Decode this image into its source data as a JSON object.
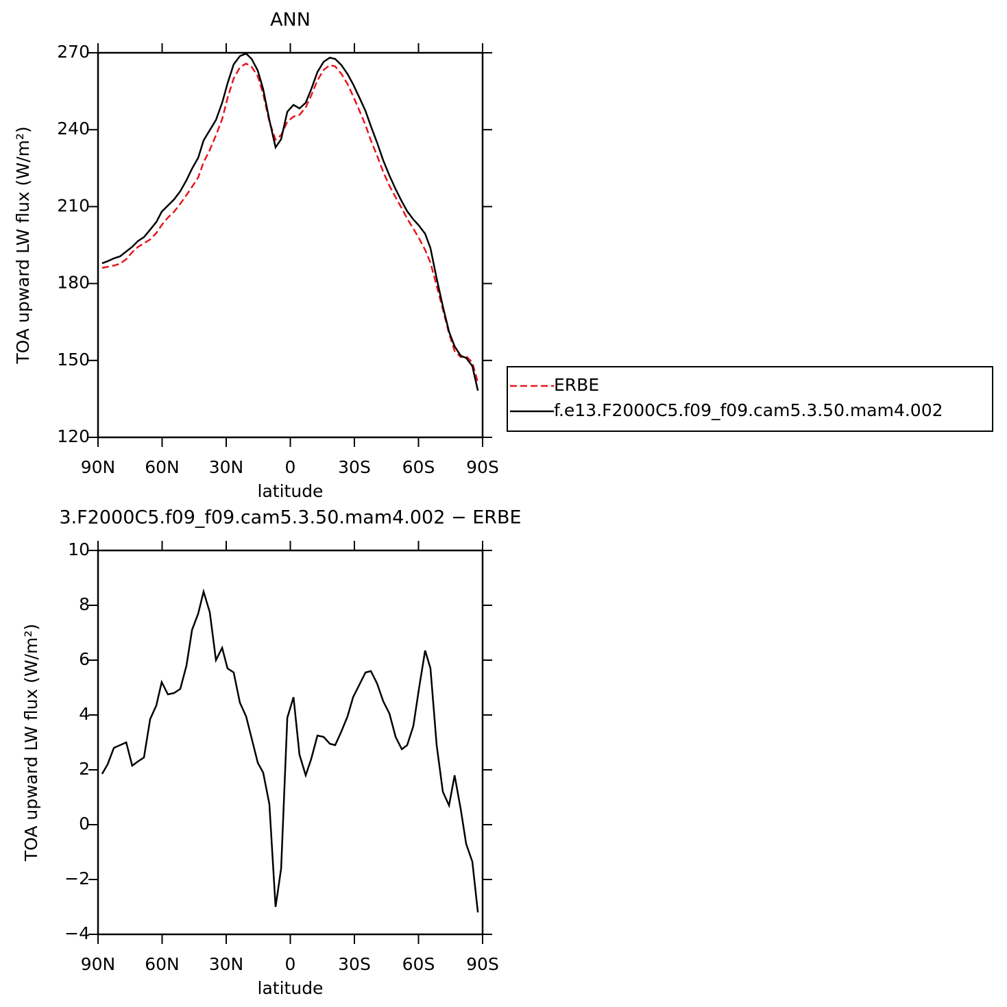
{
  "chart_data": [
    {
      "type": "line",
      "title": "ANN",
      "xlabel": "latitude",
      "ylabel": "TOA upward LW flux (W/m²)",
      "x": [
        88.1,
        85.5,
        82.6,
        79.7,
        76.8,
        74.0,
        71.4,
        68.5,
        65.6,
        62.7,
        60.2,
        57.3,
        54.4,
        51.5,
        48.6,
        46.0,
        43.1,
        40.6,
        37.7,
        34.8,
        31.9,
        29.4,
        26.5,
        23.6,
        20.7,
        18.1,
        15.2,
        12.7,
        9.8,
        6.9,
        4.3,
        1.4,
        -1.5,
        -4.3,
        -7.2,
        -9.8,
        -12.7,
        -15.6,
        -18.5,
        -21.0,
        -23.9,
        -26.8,
        -29.4,
        -32.3,
        -35.2,
        -37.7,
        -40.6,
        -43.5,
        -46.4,
        -49.3,
        -52.2,
        -54.7,
        -57.6,
        -60.2,
        -63.1,
        -65.6,
        -68.5,
        -71.4,
        -74.3,
        -76.9,
        -79.8,
        -82.3,
        -85.2,
        -87.8
      ],
      "series": [
        {
          "name": "ERBE",
          "color": "#e8141b",
          "style": "dashed",
          "values": [
            186.1,
            186.5,
            187.0,
            187.7,
            189.5,
            192.2,
            194.2,
            195.7,
            197.2,
            199.7,
            202.8,
            205.7,
            208.0,
            211.1,
            214.5,
            217.7,
            221.4,
            227.3,
            232.1,
            237.8,
            244.1,
            252.3,
            260.0,
            264.3,
            265.8,
            264.5,
            260.8,
            253.9,
            243.1,
            236.1,
            237.9,
            243.1,
            245.1,
            245.8,
            248.7,
            253.4,
            259.3,
            263.3,
            265.2,
            264.7,
            261.8,
            257.8,
            253.1,
            247.5,
            241.8,
            235.8,
            229.9,
            223.5,
            218.1,
            213.6,
            209.3,
            205.3,
            201.4,
            197.7,
            193.1,
            188.1,
            179.1,
            169.9,
            160.5,
            153.7,
            151.3,
            151.7,
            149.2,
            141.4
          ]
        },
        {
          "name": "f.e13.F2000C5.f09_f09.cam5.3.50.mam4.002",
          "color": "#000000",
          "style": "solid",
          "values": [
            187.9,
            188.7,
            189.8,
            190.6,
            192.5,
            194.3,
            196.5,
            198.1,
            201.0,
            204.0,
            208.0,
            210.4,
            212.8,
            216.0,
            220.3,
            224.8,
            229.1,
            235.8,
            239.8,
            243.8,
            250.5,
            258.0,
            265.5,
            268.7,
            269.7,
            267.6,
            263.0,
            255.8,
            243.8,
            233.1,
            236.3,
            247.0,
            249.7,
            248.3,
            250.5,
            255.8,
            262.5,
            266.5,
            268.1,
            267.6,
            265.2,
            261.7,
            257.7,
            252.6,
            247.3,
            241.4,
            235.0,
            228.0,
            222.1,
            216.8,
            212.0,
            208.2,
            205.0,
            202.6,
            199.4,
            193.8,
            182.0,
            171.1,
            161.2,
            155.5,
            151.8,
            151.0,
            147.8,
            138.2
          ]
        }
      ],
      "xlim": [
        90,
        -90
      ],
      "xticks": [
        {
          "value": 90,
          "label": "90N"
        },
        {
          "value": 60,
          "label": "60N"
        },
        {
          "value": 30,
          "label": "30N"
        },
        0,
        {
          "value": -30,
          "label": "30S"
        },
        {
          "value": -60,
          "label": "60S"
        },
        {
          "value": -90,
          "label": "90S"
        }
      ],
      "ylim": [
        120,
        270
      ],
      "yticks": [
        120,
        150,
        180,
        210,
        240,
        270
      ],
      "legend": "right"
    },
    {
      "type": "line",
      "title": "3.F2000C5.f09_f09.cam5.3.50.mam4.002 − ERBE",
      "xlabel": "latitude",
      "ylabel": "TOA upward LW flux (W/m²)",
      "x": [
        88.1,
        85.5,
        82.6,
        79.7,
        76.8,
        74.0,
        71.4,
        68.5,
        65.6,
        62.7,
        60.2,
        57.3,
        54.4,
        51.5,
        48.6,
        46.0,
        43.1,
        40.6,
        37.7,
        34.8,
        31.9,
        29.4,
        26.5,
        23.6,
        20.7,
        18.1,
        15.2,
        12.7,
        9.8,
        6.9,
        4.3,
        1.4,
        -1.5,
        -4.3,
        -7.2,
        -9.8,
        -12.7,
        -15.6,
        -18.5,
        -21.0,
        -23.9,
        -26.8,
        -29.4,
        -32.3,
        -35.2,
        -37.7,
        -40.6,
        -43.5,
        -46.4,
        -49.3,
        -52.2,
        -54.7,
        -57.6,
        -60.2,
        -63.1,
        -65.6,
        -68.5,
        -71.4,
        -74.3,
        -76.9,
        -79.8,
        -82.3,
        -85.2,
        -87.8
      ],
      "values": [
        1.85,
        2.2,
        2.8,
        2.9,
        3.0,
        2.15,
        2.3,
        2.45,
        3.85,
        4.35,
        5.2,
        4.75,
        4.8,
        4.95,
        5.8,
        7.1,
        7.7,
        8.5,
        7.75,
        6.0,
        6.45,
        5.7,
        5.55,
        4.45,
        3.95,
        3.15,
        2.25,
        1.9,
        0.75,
        -3.0,
        -1.6,
        3.9,
        4.65,
        2.55,
        1.8,
        2.4,
        3.25,
        3.2,
        2.95,
        2.9,
        3.4,
        3.95,
        4.65,
        5.1,
        5.55,
        5.6,
        5.15,
        4.5,
        4.05,
        3.2,
        2.75,
        2.9,
        3.6,
        4.95,
        6.35,
        5.7,
        2.9,
        1.2,
        0.7,
        1.8,
        0.55,
        -0.7,
        -1.35,
        -3.2
      ],
      "color": "#000000",
      "xlim": [
        90,
        -90
      ],
      "xticks": [
        {
          "value": 90,
          "label": "90N"
        },
        {
          "value": 60,
          "label": "60N"
        },
        {
          "value": 30,
          "label": "30N"
        },
        0,
        {
          "value": -30,
          "label": "30S"
        },
        {
          "value": -60,
          "label": "60S"
        },
        {
          "value": -90,
          "label": "90S"
        }
      ],
      "ylim": [
        -4,
        10
      ],
      "yticks": [
        {
          "value": -4,
          "label": "−4"
        },
        {
          "value": -2,
          "label": "−2"
        },
        0,
        2,
        4,
        6,
        8,
        10
      ]
    }
  ]
}
